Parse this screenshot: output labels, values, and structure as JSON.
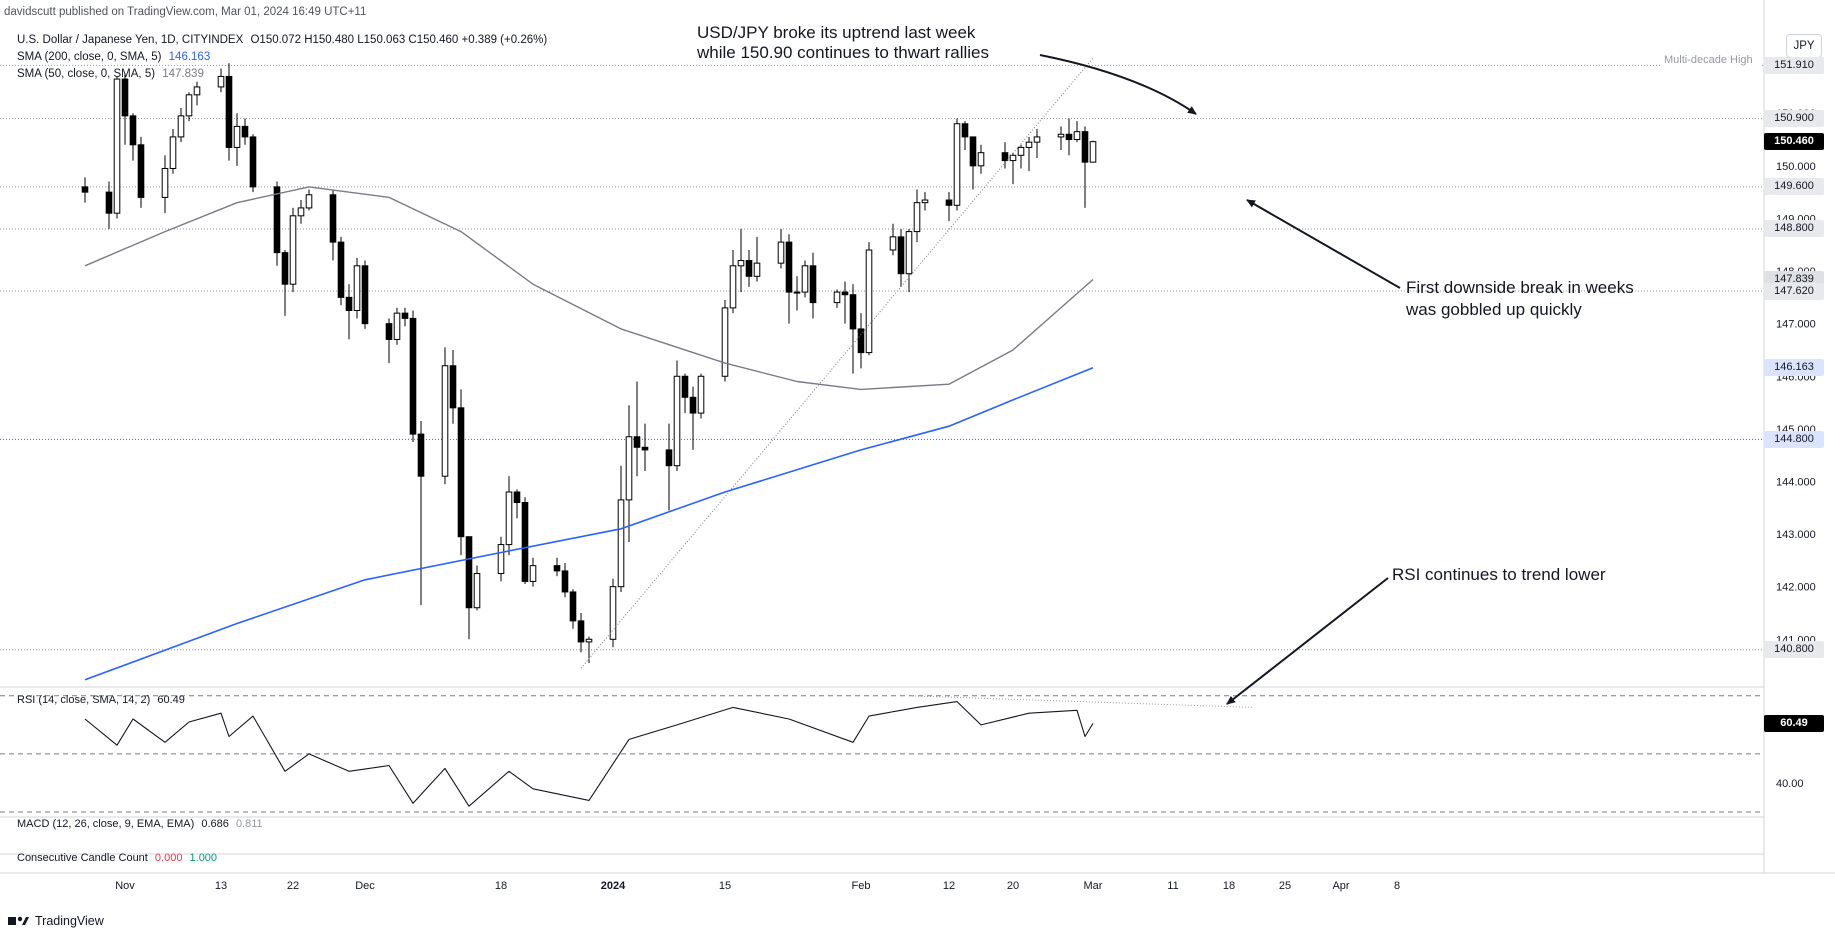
{
  "header": {
    "publisher": "davidscutt published on TradingView.com, Mar 01, 2024 16:49 UTC+11",
    "symbol_line": "U.S. Dollar / Japanese Yen, 1D, CITYINDEX",
    "ohlc": "O150.072  H150.480  L150.063  C150.460  +0.389 (+0.26%)",
    "sma200_label": "SMA (200, close, 0, SMA, 5)",
    "sma200_value": "146.163",
    "sma50_label": "SMA (50, close, 0, SMA, 5)",
    "sma50_value": "147.839",
    "currency": "JPY"
  },
  "indicators": {
    "rsi_label": "RSI (14, close, SMA, 14, 2)",
    "rsi_value": "60.49",
    "macd_label": "MACD (12, 26, close, 9, EMA, EMA)",
    "macd_v1": "0.686",
    "macd_v2": "0.811",
    "ccc_label": "Consecutive Candle Count",
    "ccc_v1": "0.000",
    "ccc_v2": "1.000"
  },
  "annotations": {
    "top_line1": "USD/JPY broke its uptrend last week",
    "top_line2": "while 150.90 continues to thwart rallies",
    "mid_line1": "First downside break in weeks",
    "mid_line2": "was gobbled up quickly",
    "rsi_note": "RSI continues to trend lower",
    "multi_decade": "Multi-decade High"
  },
  "footer": {
    "brand": "TradingView"
  },
  "colors": {
    "up_candle": "#ffffff",
    "down_candle": "#000000",
    "sma200": "#2962ff",
    "sma50": "#787b86",
    "level_line": "#9598a1",
    "level_144_8": "#2962ff"
  },
  "chart_data": {
    "type": "candlestick",
    "title": "U.S. Dollar / Japanese Yen, 1D, CITYINDEX",
    "ylim": [
      140.15,
      152.05
    ],
    "y_ticks": [
      "141.000",
      "142.000",
      "143.000",
      "144.000",
      "145.000",
      "146.000",
      "147.000",
      "148.000",
      "149.000",
      "150.000",
      "151.000"
    ],
    "x_ticks": [
      "Nov",
      "13",
      "22",
      "Dec",
      "18",
      "2024",
      "15",
      "Feb",
      "12",
      "20",
      "Mar",
      "11",
      "18",
      "25",
      "Apr",
      "8"
    ],
    "x_tick_dates": [
      "2023-11-01",
      "2023-11-13",
      "2023-11-22",
      "2023-12-01",
      "2023-12-18",
      "2024-01-01",
      "2024-01-15",
      "2024-02-01",
      "2024-02-12",
      "2024-02-20",
      "2024-03-01",
      "2024-03-11",
      "2024-03-18",
      "2024-03-25",
      "2024-04-01",
      "2024-04-08"
    ],
    "price_levels": [
      {
        "value": 151.91,
        "label": "151.910",
        "style": "dotted",
        "note": "Multi-decade High"
      },
      {
        "value": 150.9,
        "label": "150.900",
        "style": "dotted"
      },
      {
        "value": 150.46,
        "label": "150.460",
        "style": "current"
      },
      {
        "value": 149.6,
        "label": "149.600",
        "style": "dotted"
      },
      {
        "value": 148.8,
        "label": "148.800",
        "style": "dotted"
      },
      {
        "value": 147.839,
        "label": "147.839",
        "style": "sma50"
      },
      {
        "value": 147.62,
        "label": "147.620",
        "style": "dotted"
      },
      {
        "value": 146.163,
        "label": "146.163",
        "style": "sma200"
      },
      {
        "value": 144.8,
        "label": "144.800",
        "style": "blue-dotted"
      },
      {
        "value": 140.8,
        "label": "140.800",
        "style": "dotted"
      }
    ],
    "candles": [
      [
        "2023-10-27",
        149.6,
        149.78,
        149.3,
        149.5
      ],
      [
        "2023-10-30",
        149.5,
        149.7,
        148.8,
        149.1
      ],
      [
        "2023-10-31",
        149.1,
        151.7,
        149.0,
        151.65
      ],
      [
        "2023-11-01",
        151.65,
        151.75,
        150.4,
        150.95
      ],
      [
        "2023-11-02",
        150.95,
        151.0,
        150.1,
        150.4
      ],
      [
        "2023-11-03",
        150.4,
        150.55,
        149.2,
        149.4
      ],
      [
        "2023-11-06",
        149.4,
        150.2,
        149.1,
        149.95
      ],
      [
        "2023-11-07",
        149.95,
        150.7,
        149.85,
        150.55
      ],
      [
        "2023-11-08",
        150.55,
        151.1,
        150.45,
        150.95
      ],
      [
        "2023-11-09",
        150.95,
        151.4,
        150.85,
        151.35
      ],
      [
        "2023-11-10",
        151.35,
        151.6,
        151.15,
        151.5
      ],
      [
        "2023-11-13",
        151.5,
        151.85,
        151.4,
        151.7
      ],
      [
        "2023-11-14",
        151.7,
        151.95,
        150.1,
        150.35
      ],
      [
        "2023-11-15",
        150.35,
        151.0,
        150.0,
        150.75
      ],
      [
        "2023-11-16",
        150.75,
        150.9,
        150.4,
        150.55
      ],
      [
        "2023-11-17",
        150.55,
        150.6,
        149.5,
        149.6
      ],
      [
        "2023-11-20",
        149.6,
        149.7,
        148.1,
        148.35
      ],
      [
        "2023-11-21",
        148.35,
        148.4,
        147.15,
        147.75
      ],
      [
        "2023-11-22",
        147.75,
        149.2,
        147.6,
        149.05
      ],
      [
        "2023-11-23",
        149.05,
        149.35,
        148.9,
        149.2
      ],
      [
        "2023-11-24",
        149.2,
        149.55,
        149.15,
        149.45
      ],
      [
        "2023-11-27",
        149.45,
        149.55,
        148.2,
        148.55
      ],
      [
        "2023-11-28",
        148.55,
        148.65,
        147.35,
        147.5
      ],
      [
        "2023-11-29",
        147.5,
        147.75,
        146.7,
        147.25
      ],
      [
        "2023-11-30",
        147.25,
        148.25,
        147.1,
        148.1
      ],
      [
        "2023-12-01",
        148.1,
        148.2,
        146.9,
        147.0
      ],
      [
        "2023-12-04",
        147.0,
        147.1,
        146.25,
        146.7
      ],
      [
        "2023-12-05",
        146.7,
        147.3,
        146.6,
        147.2
      ],
      [
        "2023-12-06",
        147.2,
        147.3,
        146.95,
        147.1
      ],
      [
        "2023-12-07",
        147.1,
        147.25,
        144.75,
        144.9
      ],
      [
        "2023-12-08",
        144.9,
        145.15,
        141.65,
        144.1
      ],
      [
        "2023-12-11",
        144.1,
        146.55,
        143.95,
        146.2
      ],
      [
        "2023-12-12",
        146.2,
        146.5,
        145.1,
        145.4
      ],
      [
        "2023-12-13",
        145.4,
        145.75,
        142.6,
        142.95
      ],
      [
        "2023-12-14",
        142.95,
        142.95,
        141.0,
        141.6
      ],
      [
        "2023-12-15",
        141.6,
        142.4,
        141.55,
        142.25
      ],
      [
        "2023-12-18",
        142.25,
        142.95,
        142.1,
        142.8
      ],
      [
        "2023-12-19",
        142.8,
        144.1,
        142.6,
        143.8
      ],
      [
        "2023-12-20",
        143.8,
        143.85,
        143.3,
        143.6
      ],
      [
        "2023-12-21",
        143.6,
        143.7,
        142.05,
        142.1
      ],
      [
        "2023-12-22",
        142.1,
        142.55,
        142.0,
        142.4
      ],
      [
        "2023-12-25",
        142.4,
        142.55,
        142.2,
        142.3
      ],
      [
        "2023-12-26",
        142.3,
        142.45,
        141.8,
        141.9
      ],
      [
        "2023-12-27",
        141.9,
        141.95,
        141.2,
        141.35
      ],
      [
        "2023-12-28",
        141.35,
        141.5,
        140.75,
        140.95
      ],
      [
        "2023-12-29",
        140.95,
        141.05,
        140.55,
        141.0
      ],
      [
        "2024-01-01",
        141.0,
        142.15,
        140.85,
        142.0
      ],
      [
        "2024-01-02",
        142.0,
        144.3,
        141.9,
        143.65
      ],
      [
        "2024-01-03",
        143.65,
        145.45,
        142.85,
        144.85
      ],
      [
        "2024-01-04",
        144.85,
        145.9,
        144.1,
        144.65
      ],
      [
        "2024-01-05",
        144.65,
        145.1,
        144.2,
        144.6
      ],
      [
        "2024-01-08",
        144.6,
        145.1,
        143.45,
        144.3
      ],
      [
        "2024-01-09",
        144.3,
        146.3,
        144.2,
        146.0
      ],
      [
        "2024-01-10",
        146.0,
        146.05,
        145.3,
        145.6
      ],
      [
        "2024-01-11",
        145.6,
        145.8,
        144.6,
        145.3
      ],
      [
        "2024-01-12",
        145.3,
        146.05,
        145.2,
        146.0
      ],
      [
        "2024-01-15",
        146.0,
        147.45,
        145.9,
        147.3
      ],
      [
        "2024-01-16",
        147.3,
        148.4,
        147.2,
        148.1
      ],
      [
        "2024-01-17",
        148.1,
        148.8,
        147.6,
        148.2
      ],
      [
        "2024-01-18",
        148.2,
        148.4,
        147.7,
        147.9
      ],
      [
        "2024-01-19",
        147.9,
        148.65,
        147.8,
        148.15
      ],
      [
        "2024-01-22",
        148.15,
        148.8,
        148.05,
        148.55
      ],
      [
        "2024-01-23",
        148.55,
        148.7,
        147.0,
        147.6
      ],
      [
        "2024-01-24",
        147.6,
        147.9,
        147.25,
        147.6
      ],
      [
        "2024-01-25",
        147.6,
        148.2,
        147.5,
        148.1
      ],
      [
        "2024-01-26",
        148.1,
        148.35,
        147.1,
        147.4
      ],
      [
        "2024-01-29",
        147.4,
        147.65,
        147.3,
        147.6
      ],
      [
        "2024-01-30",
        147.6,
        147.8,
        147.0,
        147.55
      ],
      [
        "2024-01-31",
        147.55,
        147.75,
        146.05,
        146.9
      ],
      [
        "2024-02-01",
        146.9,
        147.2,
        146.15,
        146.45
      ],
      [
        "2024-02-02",
        146.45,
        148.55,
        146.4,
        148.4
      ],
      [
        "2024-02-05",
        148.4,
        148.9,
        148.3,
        148.65
      ],
      [
        "2024-02-06",
        148.65,
        148.8,
        147.7,
        147.95
      ],
      [
        "2024-02-07",
        147.95,
        148.8,
        147.6,
        148.75
      ],
      [
        "2024-02-08",
        148.75,
        149.55,
        148.55,
        149.3
      ],
      [
        "2024-02-09",
        149.3,
        149.5,
        149.15,
        149.35
      ],
      [
        "2024-02-12",
        149.35,
        149.5,
        148.95,
        149.25
      ],
      [
        "2024-02-13",
        149.25,
        150.9,
        149.15,
        150.8
      ],
      [
        "2024-02-14",
        150.8,
        150.85,
        150.3,
        150.55
      ],
      [
        "2024-02-15",
        150.55,
        150.55,
        149.55,
        150.0
      ],
      [
        "2024-02-16",
        150.0,
        150.4,
        149.85,
        150.25
      ],
      [
        "2024-02-19",
        150.25,
        150.45,
        149.95,
        150.1
      ],
      [
        "2024-02-20",
        150.1,
        150.25,
        149.65,
        150.2
      ],
      [
        "2024-02-21",
        150.2,
        150.4,
        149.95,
        150.35
      ],
      [
        "2024-02-22",
        150.35,
        150.55,
        149.9,
        150.45
      ],
      [
        "2024-02-23",
        150.45,
        150.7,
        150.15,
        150.55
      ],
      [
        "2024-02-26",
        150.55,
        150.75,
        150.3,
        150.6
      ],
      [
        "2024-02-27",
        150.6,
        150.9,
        150.2,
        150.5
      ],
      [
        "2024-02-28",
        150.5,
        150.85,
        150.45,
        150.65
      ],
      [
        "2024-02-29",
        150.65,
        150.75,
        149.2,
        150.07
      ],
      [
        "2024-03-01",
        150.07,
        150.48,
        150.06,
        150.46
      ]
    ],
    "series": [
      {
        "name": "SMA (200, close, 0, SMA, 5)",
        "x": [
          "2023-10-27",
          "2023-11-15",
          "2023-12-01",
          "2023-12-18",
          "2024-01-02",
          "2024-01-15",
          "2024-02-01",
          "2024-02-12",
          "2024-02-20",
          "2024-03-01"
        ],
        "y": [
          140.23,
          141.3,
          142.13,
          142.65,
          143.1,
          143.8,
          144.6,
          145.05,
          145.55,
          146.163
        ]
      },
      {
        "name": "SMA (50, close, 0, SMA, 5)",
        "x": [
          "2023-10-27",
          "2023-11-06",
          "2023-11-15",
          "2023-11-24",
          "2023-12-04",
          "2023-12-13",
          "2023-12-22",
          "2024-01-02",
          "2024-01-15",
          "2024-01-24",
          "2024-02-01",
          "2024-02-12",
          "2024-02-20",
          "2024-03-01"
        ],
        "y": [
          148.1,
          148.75,
          149.3,
          149.6,
          149.4,
          148.75,
          147.75,
          146.9,
          146.25,
          145.9,
          145.75,
          145.85,
          146.5,
          147.839
        ]
      },
      {
        "name": "RSI (14, close, SMA, 14, 2)",
        "x": [
          "2023-10-27",
          "2023-10-31",
          "2023-11-02",
          "2023-11-06",
          "2023-11-09",
          "2023-11-13",
          "2023-11-14",
          "2023-11-17",
          "2023-11-21",
          "2023-11-24",
          "2023-11-29",
          "2023-12-04",
          "2023-12-07",
          "2023-12-11",
          "2023-12-14",
          "2023-12-19",
          "2023-12-22",
          "2023-12-29",
          "2024-01-03",
          "2024-01-09",
          "2024-01-16",
          "2024-01-23",
          "2024-01-31",
          "2024-02-02",
          "2024-02-08",
          "2024-02-13",
          "2024-02-16",
          "2024-02-22",
          "2024-02-28",
          "2024-02-29",
          "2024-03-01"
        ],
        "y": [
          62,
          53,
          62,
          54,
          61,
          64,
          56,
          63,
          44,
          50,
          44,
          46,
          33,
          45,
          32,
          44,
          38,
          34,
          55,
          60,
          66,
          62,
          54,
          63,
          66,
          68,
          60,
          64,
          65,
          56,
          60.49
        ]
      }
    ],
    "rsi": {
      "ylim": [
        30,
        72
      ],
      "levels": [
        70,
        50,
        30
      ],
      "tick": "40.00",
      "value": "60.49"
    },
    "trendlines": [
      {
        "from": [
          "2023-12-28",
          140.45
        ],
        "to": [
          "2024-03-01",
          152.05
        ],
        "style": "dotted"
      },
      {
        "from": [
          "2024-02-07",
          70.0
        ],
        "to": [
          "2024-03-21",
          66.0
        ],
        "style": "dotted",
        "pane": "rsi"
      }
    ]
  }
}
